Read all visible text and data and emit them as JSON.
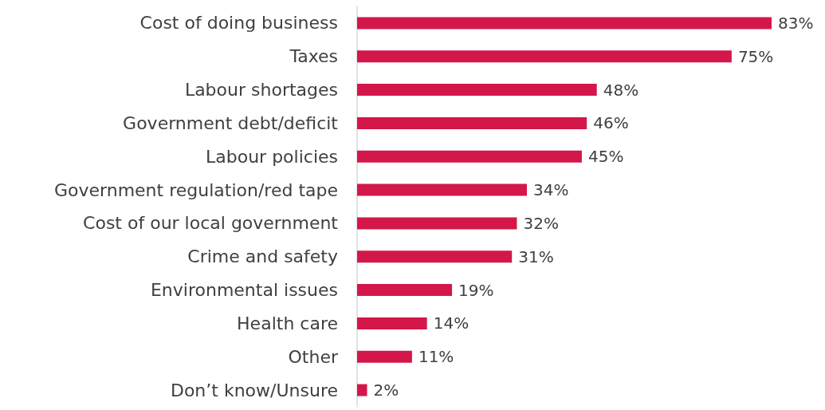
{
  "chart_data": {
    "type": "bar",
    "orientation": "horizontal",
    "categories": [
      "Cost of doing business",
      "Taxes",
      "Labour shortages",
      "Government debt/deficit",
      "Labour policies",
      "Government regulation/red tape",
      "Cost of our local government",
      "Crime and safety",
      "Environmental issues",
      "Health care",
      "Other",
      "Don’t know/Unsure"
    ],
    "values": [
      83,
      75,
      48,
      46,
      45,
      34,
      32,
      31,
      19,
      14,
      11,
      2
    ],
    "value_labels": [
      "83%",
      "75%",
      "48%",
      "46%",
      "45%",
      "34%",
      "32%",
      "31%",
      "19%",
      "14%",
      "11%",
      "2%"
    ],
    "color": "#d4174a",
    "grid": false
  }
}
